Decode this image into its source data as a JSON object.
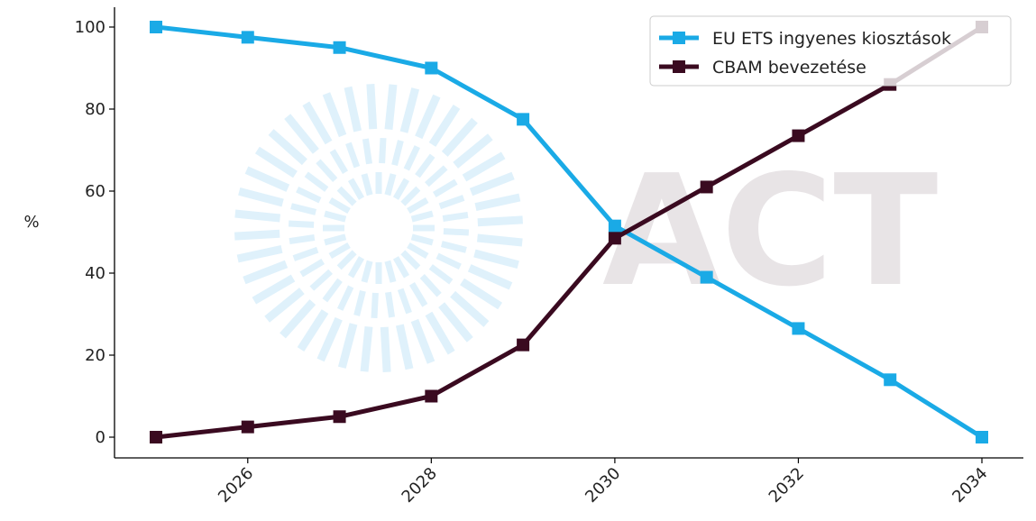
{
  "chart_data": {
    "type": "line",
    "title": "",
    "xlabel": "",
    "ylabel": "%",
    "xlim": [
      2024.8,
      2034.4
    ],
    "ylim": [
      -5,
      105
    ],
    "x_ticks": [
      2026,
      2028,
      2030,
      2032,
      2034
    ],
    "y_ticks": [
      0,
      20,
      40,
      60,
      80,
      100
    ],
    "x": [
      2025,
      2026,
      2027,
      2028,
      2029,
      2030,
      2031,
      2032,
      2033,
      2034
    ],
    "series": [
      {
        "name": " EU ETS ingyenes kiosztások",
        "color": "#1aaae6",
        "marker": "square",
        "values": [
          100,
          97.5,
          95,
          90,
          77.5,
          51.5,
          39,
          26.5,
          14,
          0
        ]
      },
      {
        "name": "CBAM bevezetése",
        "color": "#3a0a20",
        "marker": "square",
        "values": [
          0,
          2.5,
          5,
          10,
          22.5,
          48.5,
          61,
          73.5,
          86,
          100
        ]
      }
    ],
    "legend_position": "top-right",
    "grid": false,
    "watermark": {
      "text": "ACT",
      "logo": "sunburst"
    }
  }
}
